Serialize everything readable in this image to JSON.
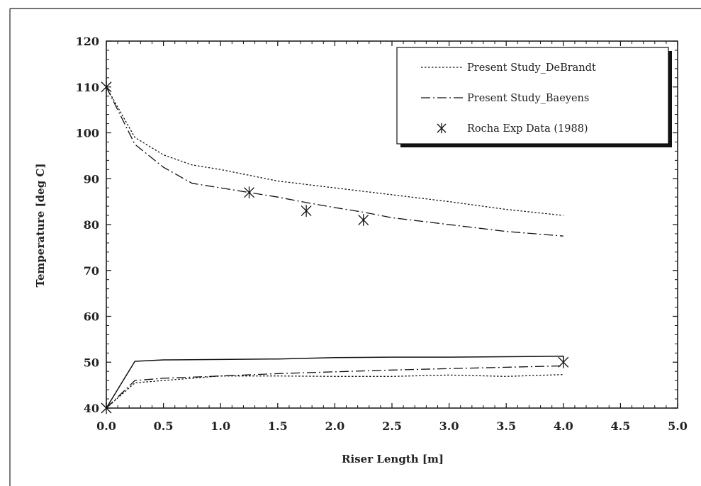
{
  "chart_data": {
    "type": "line",
    "xlabel": "Riser Length [m]",
    "ylabel": "Temperature [deg C]",
    "xlim": [
      0,
      5
    ],
    "ylim": [
      40,
      120
    ],
    "xticks": [
      "0.0",
      "0.5",
      "1.0",
      "1.5",
      "2.0",
      "2.5",
      "3.0",
      "3.5",
      "4.0",
      "4.5",
      "5.0"
    ],
    "yticks": [
      "40",
      "50",
      "60",
      "70",
      "80",
      "90",
      "100",
      "110",
      "120"
    ],
    "grid": false,
    "legend_position": "top-right",
    "legend": [
      {
        "label": "Present Study_DeBrandt",
        "style": "dotted"
      },
      {
        "label": "Present Study_Baeyens",
        "style": "dash-dot"
      },
      {
        "label": "Rocha Exp Data (1988)",
        "style": "asterisk"
      }
    ],
    "series": [
      {
        "name": "Present Study_DeBrandt",
        "style": "dotted",
        "x": [
          0,
          0.25,
          0.5,
          0.75,
          1.0,
          1.5,
          2.0,
          2.5,
          3.0,
          3.5,
          4.0
        ],
        "y": [
          110,
          99,
          95.2,
          93,
          92,
          89.5,
          88,
          86.5,
          85,
          83.3,
          82
        ]
      },
      {
        "name": "Present Study_Baeyens",
        "style": "dash-dot",
        "x": [
          0,
          0.25,
          0.5,
          0.75,
          1.0,
          1.25,
          1.5,
          1.75,
          2.0,
          2.25,
          2.5,
          3.0,
          3.5,
          4.0
        ],
        "y": [
          110,
          97.5,
          92.5,
          89,
          88,
          87,
          86,
          84.8,
          83.7,
          82.7,
          81.5,
          80,
          78.5,
          77.5
        ]
      },
      {
        "style": "dotted",
        "x": [
          0,
          0.25,
          0.5,
          1.0,
          1.5,
          2.0,
          2.5,
          3.0,
          3.5,
          4.0
        ],
        "y": [
          40,
          45.5,
          46,
          47,
          47,
          46.9,
          46.9,
          47.2,
          46.9,
          47.3
        ]
      },
      {
        "style": "dash-dot",
        "x": [
          0,
          0.25,
          0.5,
          1.0,
          1.5,
          2.0,
          2.5,
          3.0,
          3.5,
          4.0
        ],
        "y": [
          40,
          46,
          46.5,
          47,
          47.5,
          47.9,
          48.3,
          48.6,
          48.9,
          49.2
        ]
      },
      {
        "style": "solid",
        "x": [
          0,
          0.25,
          0.5,
          1.0,
          1.5,
          2.0,
          2.5,
          3.0,
          3.5,
          4.0,
          4.0
        ],
        "y": [
          40,
          50.2,
          50.5,
          50.6,
          50.7,
          51,
          51.1,
          51.1,
          51.2,
          51.3,
          50
        ]
      },
      {
        "name": "Rocha Exp Data (1988)",
        "style": "asterisk",
        "x": [
          0,
          1.25,
          1.75,
          2.25,
          0,
          4.0
        ],
        "y": [
          110,
          87,
          83,
          81,
          40,
          50
        ]
      }
    ]
  }
}
